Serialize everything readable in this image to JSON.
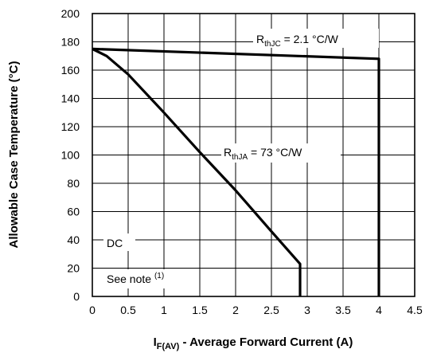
{
  "chart_data": {
    "type": "line",
    "xlabel": {
      "main": "I",
      "subscript": "F(AV)",
      "rest": " - Average Forward Current (A)"
    },
    "ylabel": "Allowable Case Temperature (°C)",
    "xlim": [
      0,
      4.5
    ],
    "ylim": [
      0,
      200
    ],
    "x_ticks": [
      0,
      0.5,
      1,
      1.5,
      2,
      2.5,
      3,
      3.5,
      4,
      4.5
    ],
    "x_tick_labels": [
      "0",
      "0.5",
      "1",
      "1.5",
      "2",
      "2.5",
      "3",
      "3.5",
      "4",
      "4.5"
    ],
    "y_ticks": [
      0,
      20,
      40,
      60,
      80,
      100,
      120,
      140,
      160,
      180,
      200
    ],
    "y_tick_labels": [
      "0",
      "20",
      "40",
      "60",
      "80",
      "100",
      "120",
      "140",
      "160",
      "180",
      "200"
    ],
    "grid": true,
    "series": [
      {
        "x": [
          0,
          4,
          4
        ],
        "y": [
          175,
          168,
          0
        ]
      },
      {
        "x": [
          0,
          0.2,
          0.5,
          1.0,
          1.5,
          2.0,
          2.5,
          2.9,
          2.9
        ],
        "y": [
          175,
          170,
          157,
          130,
          102,
          75,
          46,
          23,
          0
        ]
      }
    ],
    "annotations": [
      {
        "name": "rthjc",
        "main": "R",
        "sub": "thJC",
        "rest": " = 2.1 °C/W"
      },
      {
        "name": "rthja",
        "main": "R",
        "sub": "thJA",
        "rest": " = 73 °C/W"
      },
      {
        "name": "dc",
        "text": "DC"
      },
      {
        "name": "see-note",
        "text": "See note ",
        "sup": "(1)"
      }
    ]
  }
}
